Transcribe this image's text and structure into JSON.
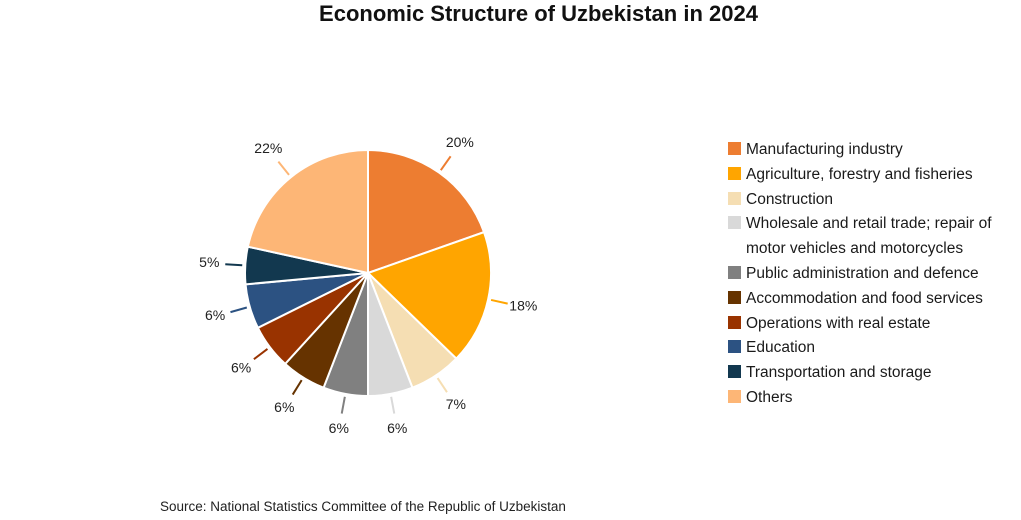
{
  "chart_data": {
    "type": "pie",
    "title": "Economic Structure of Uzbekistan in 2024",
    "source": "Source: National Statistics Committee of the Republic of Uzbekistan",
    "start_angle": "12 o'clock, clockwise",
    "slices": [
      {
        "name": "Manufacturing industry",
        "value": 20,
        "label": "20%",
        "color": "#ED7D31"
      },
      {
        "name": "Agriculture, forestry and fisheries",
        "value": 18,
        "label": "18%",
        "color": "#FFA500"
      },
      {
        "name": "Construction",
        "value": 7,
        "label": "7%",
        "color": "#F5DEB3"
      },
      {
        "name": "Wholesale and retail trade; repair of motor vehicles and motorcycles",
        "value": 6,
        "label": "6%",
        "color": "#D9D9D9"
      },
      {
        "name": "Public administration and defence",
        "value": 6,
        "label": "6%",
        "color": "#808080"
      },
      {
        "name": "Accommodation and food services",
        "value": 6,
        "label": "6%",
        "color": "#663300"
      },
      {
        "name": "Operations with real estate",
        "value": 6,
        "label": "6%",
        "color": "#993300"
      },
      {
        "name": "Education",
        "value": 6,
        "label": "6%",
        "color": "#2C5282"
      },
      {
        "name": "Transportation and storage",
        "value": 5,
        "label": "5%",
        "color": "#12384F"
      },
      {
        "name": "Others",
        "value": 22,
        "label": "22%",
        "color": "#FDB676"
      }
    ],
    "legend_position": "right"
  }
}
